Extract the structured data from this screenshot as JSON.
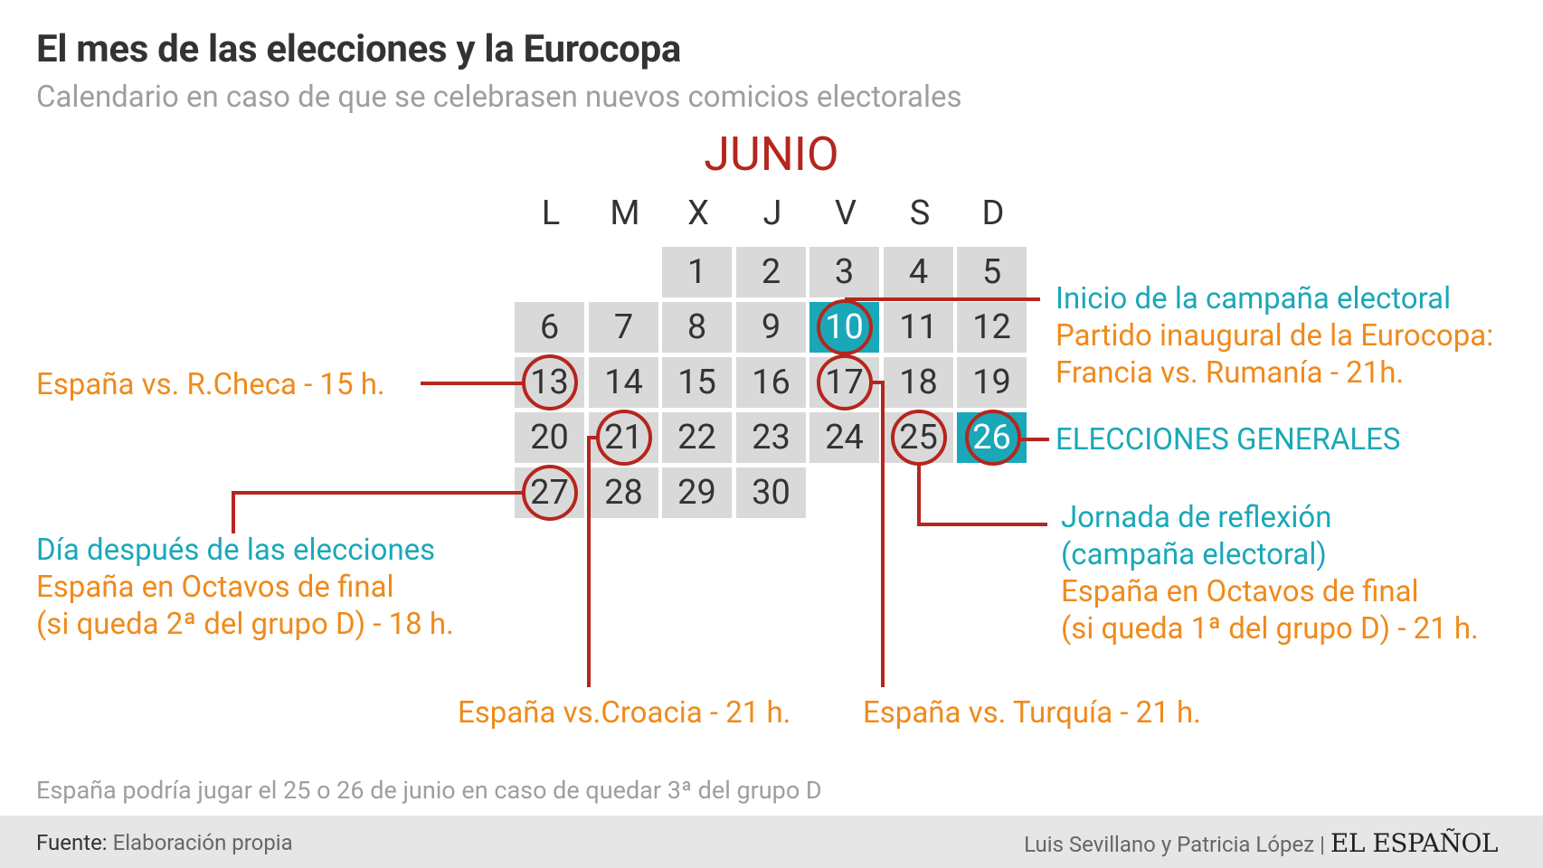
{
  "header": {
    "title": "El mes de las elecciones y la Eurocopa",
    "subtitle": "Calendario en caso de que se celebrasen nuevos comicios electorales"
  },
  "calendar": {
    "month": "JUNIO",
    "weekdays": [
      "L",
      "M",
      "X",
      "J",
      "V",
      "S",
      "D"
    ],
    "weeks": [
      [
        "",
        "",
        "1",
        "2",
        "3",
        "4",
        "5"
      ],
      [
        "6",
        "7",
        "8",
        "9",
        "10",
        "11",
        "12"
      ],
      [
        "13",
        "14",
        "15",
        "16",
        "17",
        "18",
        "19"
      ],
      [
        "20",
        "21",
        "22",
        "23",
        "24",
        "25",
        "26"
      ],
      [
        "27",
        "28",
        "29",
        "30",
        "",
        "",
        ""
      ]
    ],
    "highlighted_days": [
      "10",
      "26"
    ],
    "circled_days": [
      "10",
      "13",
      "17",
      "21",
      "25",
      "26",
      "27"
    ]
  },
  "annotations": {
    "day10": {
      "line1": "Inicio de la campaña electoral",
      "line2": "Partido inaugural de la Eurocopa:",
      "line3": "Francia vs. Rumanía - 21h."
    },
    "day13": {
      "line1": "España vs. R.Checa - 15 h."
    },
    "day26": {
      "line1": "ELECCIONES GENERALES"
    },
    "day25": {
      "line1": "Jornada de reflexión",
      "line2": "(campaña electoral)",
      "line3": "España en Octavos de final",
      "line4": "(si queda 1ª del grupo D) - 21 h."
    },
    "day27": {
      "line1": "Día después de las elecciones",
      "line2": "España en Octavos de final",
      "line3": "(si queda 2ª del grupo D) - 18 h."
    },
    "day21": {
      "line1": "España vs.Croacia - 21 h."
    },
    "day17": {
      "line1": "España vs. Turquía - 21 h."
    }
  },
  "note": "España podría jugar el 25 o 26 de junio en caso de quedar 3ª del grupo D",
  "footer": {
    "source_label": "Fuente:",
    "source_value": "Elaboración propia",
    "credits": "Luis Sevillano y Patricia López |",
    "logo": "EL ESPAÑOL"
  },
  "colors": {
    "accent_red": "#b5261e",
    "orange": "#ef8a1c",
    "teal": "#1aa8b8",
    "cell_gray": "#d9d9d9",
    "title": "#333333",
    "muted": "#9e9e9e"
  }
}
